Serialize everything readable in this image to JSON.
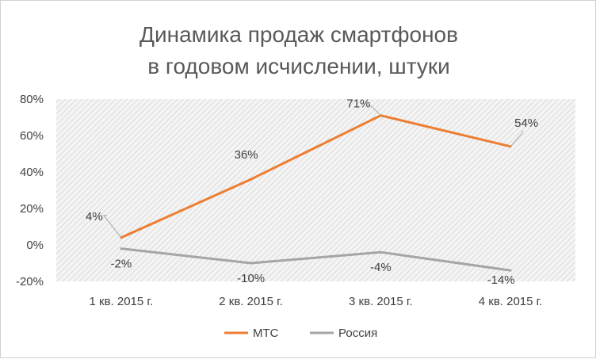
{
  "chart_data": {
    "type": "line",
    "title_lines": [
      "Динамика продаж смартфонов",
      "в годовом исчислении, штуки"
    ],
    "categories": [
      "1 кв. 2015 г.",
      "2 кв. 2015 г.",
      "3 кв. 2015 г.",
      "4 кв. 2015 г."
    ],
    "y_ticks": [
      "80%",
      "60%",
      "40%",
      "20%",
      "0%",
      "-20%"
    ],
    "ylim": [
      -20,
      80
    ],
    "series": [
      {
        "name": "МТС",
        "values": [
          4,
          36,
          71,
          54
        ],
        "labels": [
          "4%",
          "36%",
          "71%",
          "54%"
        ],
        "color": "#ED7D31"
      },
      {
        "name": "Россия",
        "values": [
          -2,
          -10,
          -4,
          -14
        ],
        "labels": [
          "-2%",
          "-10%",
          "-4%",
          "-14%"
        ],
        "color": "#A5A5A5"
      }
    ],
    "grid": false,
    "plot_area_pattern": "diagonal-hatch",
    "legend_position": "bottom"
  }
}
